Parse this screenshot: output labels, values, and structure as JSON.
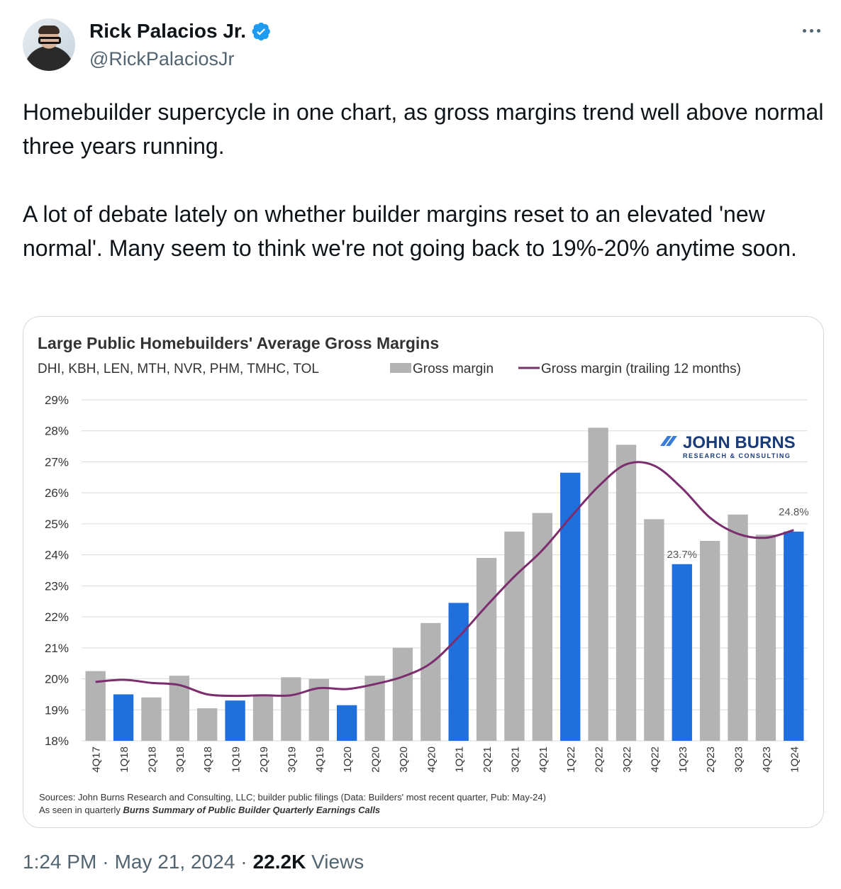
{
  "author": {
    "name": "Rick Palacios Jr.",
    "handle": "@RickPalaciosJr",
    "verified_color": "#1d9bf0"
  },
  "menu_icon": "more-dots-icon",
  "tweet": {
    "paragraph1": "Homebuilder supercycle in one chart, as gross margins trend well above normal three years running.",
    "paragraph2": "A lot of debate lately on whether builder margins reset to an elevated 'new normal'. Many seem to think we're not going back to 19%-20% anytime soon."
  },
  "footer": {
    "time": "1:24 PM",
    "sep1": "·",
    "date": "May 21, 2024",
    "sep2": "·",
    "views_count": "22.2K",
    "views_label": "Views"
  },
  "logo": {
    "name": "JOHN BURNS",
    "tagline": "RESEARCH & CONSULTING"
  },
  "chart_data": {
    "type": "bar",
    "title": "Large Public Homebuilders' Average Gross Margins",
    "subtitle": "DHI, KBH, LEN, MTH, NVR, PHM, TMHC, TOL",
    "categories": [
      "4Q17",
      "1Q18",
      "2Q18",
      "3Q18",
      "4Q18",
      "1Q19",
      "2Q19",
      "3Q19",
      "4Q19",
      "1Q20",
      "2Q20",
      "3Q20",
      "4Q20",
      "1Q21",
      "2Q21",
      "3Q21",
      "4Q21",
      "1Q22",
      "2Q22",
      "3Q22",
      "4Q22",
      "1Q23",
      "2Q23",
      "3Q23",
      "4Q23",
      "1Q24"
    ],
    "series": [
      {
        "name": "Gross margin",
        "type": "bar",
        "color": "#b3b3b3",
        "highlight_color": "#1f6fdc",
        "highlighted": [
          1,
          5,
          9,
          13,
          17,
          21,
          25
        ],
        "values": [
          20.25,
          19.5,
          19.4,
          20.1,
          19.05,
          19.3,
          19.45,
          20.05,
          20.0,
          19.15,
          20.1,
          21.0,
          21.8,
          22.45,
          23.9,
          24.75,
          25.35,
          26.65,
          28.1,
          27.55,
          25.15,
          23.7,
          24.45,
          25.3,
          24.65,
          24.75
        ]
      },
      {
        "name": "Gross margin (trailing 12 months)",
        "type": "line",
        "color": "#7b2d6e",
        "values": [
          19.9,
          19.97,
          19.87,
          19.8,
          19.5,
          19.45,
          19.47,
          19.47,
          19.7,
          19.67,
          19.83,
          20.07,
          20.5,
          21.35,
          22.35,
          23.3,
          24.15,
          25.2,
          26.2,
          26.92,
          26.88,
          26.15,
          25.2,
          24.68,
          24.55,
          24.8
        ]
      }
    ],
    "ylim": [
      18,
      29
    ],
    "ytick_labels": [
      "18%",
      "19%",
      "20%",
      "21%",
      "22%",
      "23%",
      "24%",
      "25%",
      "26%",
      "27%",
      "28%",
      "29%"
    ],
    "grid": true,
    "legend_position": "top",
    "annotations": [
      {
        "index": 21,
        "text": "23.7%"
      },
      {
        "index": 25,
        "text": "24.8%"
      }
    ],
    "source_note": "Sources: John Burns Research and Consulting, LLC; builder public filings (Data: Builders' most recent quarter, Pub: May-24)",
    "source_prefix": "As seen in quarterly ",
    "source_emph": "Burns Summary of Public Builder Quarterly Earnings Calls"
  }
}
